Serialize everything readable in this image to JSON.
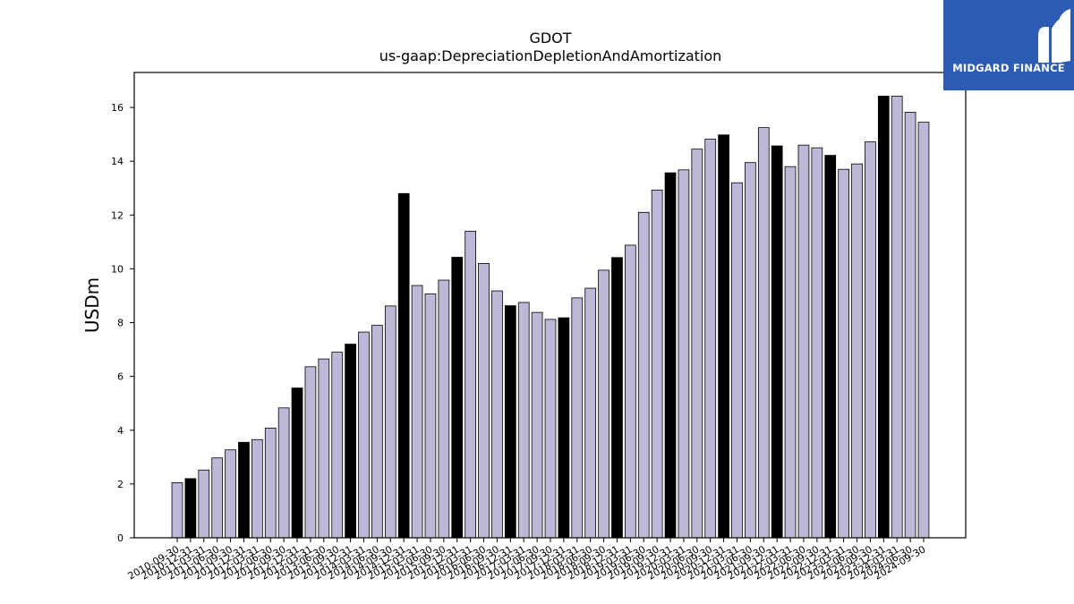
{
  "brand": {
    "name": "MIDGARD FINANCE",
    "color": "#2b5bb3"
  },
  "chart_data": {
    "type": "bar",
    "title": "GDOT",
    "subtitle": "us-gaap:DepreciationDepletionAndAmortization",
    "ylabel": "USDm",
    "xlabel": "",
    "ylim": [
      0,
      17.3
    ],
    "yticks": [
      0,
      2,
      4,
      6,
      8,
      10,
      12,
      14,
      16
    ],
    "grid": false,
    "bar_color": "#bcb8d8",
    "highlight_color": "#000000",
    "categories": [
      "2010-09-30",
      "2010-12-31",
      "2011-03-31",
      "2011-06-30",
      "2011-09-30",
      "2011-12-31",
      "2012-03-31",
      "2012-06-30",
      "2012-09-30",
      "2012-12-31",
      "2013-03-31",
      "2013-06-30",
      "2013-09-30",
      "2013-12-31",
      "2014-03-31",
      "2014-06-30",
      "2014-09-30",
      "2014-12-31",
      "2015-03-31",
      "2015-06-30",
      "2015-09-30",
      "2015-12-31",
      "2016-03-31",
      "2016-06-30",
      "2016-09-30",
      "2016-12-31",
      "2017-03-31",
      "2017-06-30",
      "2017-09-30",
      "2017-12-31",
      "2018-03-31",
      "2018-06-30",
      "2018-09-30",
      "2018-12-31",
      "2019-03-31",
      "2019-06-30",
      "2019-09-30",
      "2019-12-31",
      "2020-03-31",
      "2020-06-30",
      "2020-09-30",
      "2020-12-31",
      "2021-03-31",
      "2021-06-30",
      "2021-09-30",
      "2021-12-31",
      "2022-03-31",
      "2022-06-30",
      "2022-09-30",
      "2022-12-31",
      "2023-03-31",
      "2023-06-30",
      "2023-09-30",
      "2023-12-31",
      "2024-03-31",
      "2024-06-30",
      "2024-09-30"
    ],
    "values": [
      2.05,
      2.2,
      2.52,
      2.97,
      3.27,
      3.55,
      3.65,
      4.08,
      4.83,
      5.57,
      6.36,
      6.65,
      6.9,
      7.2,
      7.65,
      7.9,
      8.62,
      12.8,
      9.38,
      9.07,
      9.58,
      10.43,
      11.4,
      10.2,
      9.18,
      8.63,
      8.75,
      8.38,
      8.12,
      8.18,
      8.92,
      9.28,
      9.95,
      10.42,
      10.88,
      12.1,
      12.93,
      13.57,
      13.68,
      14.45,
      14.82,
      14.98,
      13.2,
      13.95,
      15.25,
      14.57,
      13.8,
      14.6,
      14.5,
      14.22,
      13.7,
      13.9,
      14.72,
      16.42,
      16.42,
      15.82,
      15.45
    ],
    "highlighted": [
      false,
      true,
      false,
      false,
      false,
      true,
      false,
      false,
      false,
      true,
      false,
      false,
      false,
      true,
      false,
      false,
      false,
      true,
      false,
      false,
      false,
      true,
      false,
      false,
      false,
      true,
      false,
      false,
      false,
      true,
      false,
      false,
      false,
      true,
      false,
      false,
      false,
      true,
      false,
      false,
      false,
      true,
      false,
      false,
      false,
      true,
      false,
      false,
      false,
      true,
      false,
      false,
      false,
      true,
      false,
      false,
      false
    ]
  }
}
